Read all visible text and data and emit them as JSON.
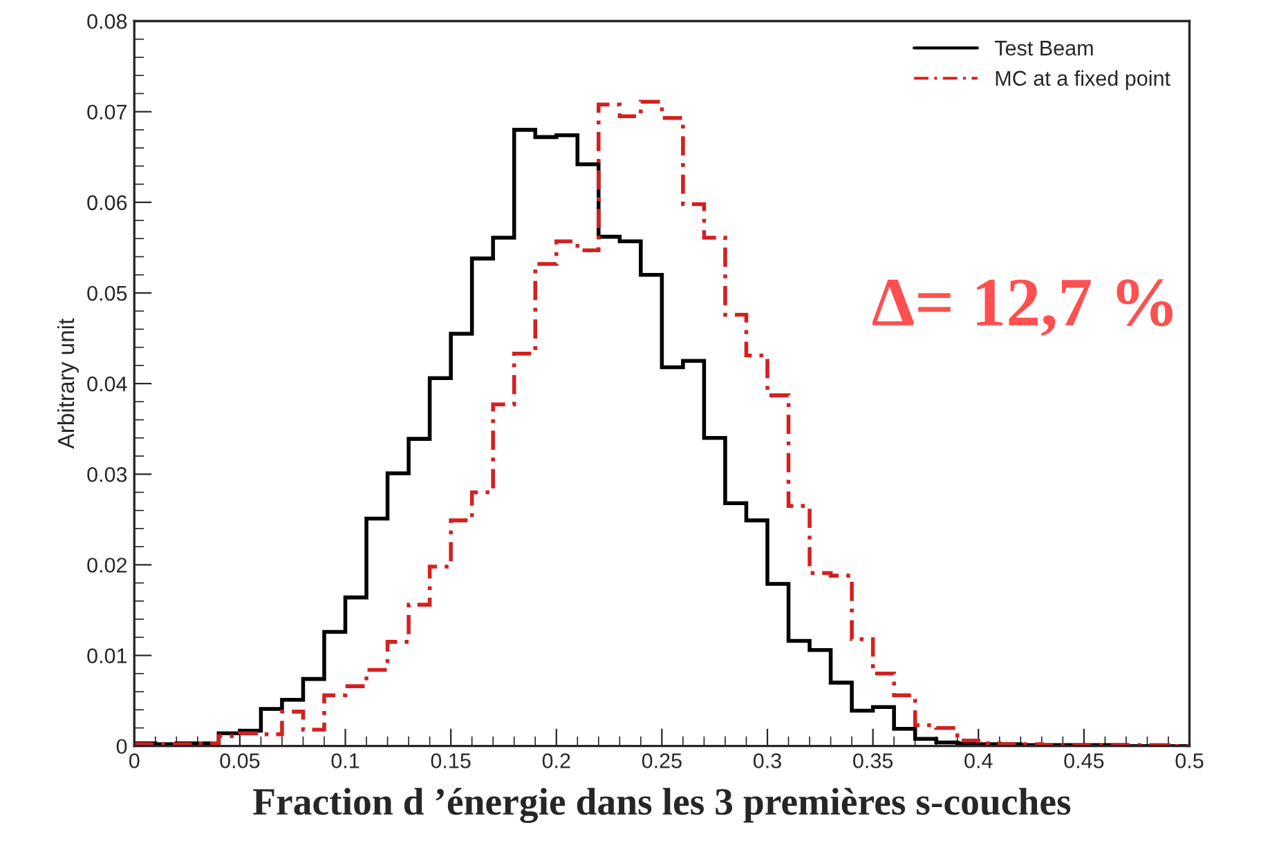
{
  "chart_data": {
    "type": "histogram",
    "xlabel": "Fraction d ’énergie dans les 3 premières s-couches",
    "ylabel": "Arbitrary unit",
    "annotations": [
      "Δ= 12,7 %"
    ],
    "bins": [
      0,
      0.01,
      0.02,
      0.03,
      0.04,
      0.05,
      0.06,
      0.07,
      0.08,
      0.09,
      0.1,
      0.11,
      0.12,
      0.13,
      0.14,
      0.15,
      0.16,
      0.17,
      0.18,
      0.19,
      0.2,
      0.21,
      0.22,
      0.23,
      0.24,
      0.25,
      0.26,
      0.27,
      0.28,
      0.29,
      0.3,
      0.31,
      0.32,
      0.33,
      0.34,
      0.35,
      0.36,
      0.37,
      0.38,
      0.39,
      0.4,
      0.41,
      0.42,
      0.43,
      0.44,
      0.45,
      0.46,
      0.47,
      0.48,
      0.49,
      0.5
    ],
    "series": [
      {
        "name": "Test Beam",
        "color": "#000000",
        "line_style": "solid",
        "values": [
          0.0003,
          0.0002,
          0.0003,
          0.0003,
          0.0014,
          0.0017,
          0.0041,
          0.0051,
          0.0074,
          0.0126,
          0.0164,
          0.0251,
          0.0301,
          0.0339,
          0.0406,
          0.0455,
          0.0538,
          0.0561,
          0.068,
          0.0672,
          0.0674,
          0.0642,
          0.0562,
          0.0557,
          0.052,
          0.0418,
          0.0425,
          0.034,
          0.0268,
          0.0249,
          0.0179,
          0.0116,
          0.0106,
          0.007,
          0.0039,
          0.0043,
          0.0019,
          0.0008,
          0.0004,
          0.0003,
          0.0002,
          0.0002,
          0.0001,
          0.0001,
          0.0001,
          0.0001,
          0.0001,
          0,
          0,
          0
        ]
      },
      {
        "name": "MC at a fixed point",
        "color": "#d42020",
        "line_style": "dashed",
        "values": [
          0.0002,
          0.0002,
          0.0002,
          0.0003,
          0.0011,
          0.0014,
          0.0013,
          0.0038,
          0.0018,
          0.0056,
          0.0066,
          0.0084,
          0.0115,
          0.0156,
          0.0198,
          0.0249,
          0.028,
          0.0377,
          0.0433,
          0.0532,
          0.0557,
          0.0547,
          0.0708,
          0.0695,
          0.0711,
          0.0693,
          0.0598,
          0.0561,
          0.0476,
          0.0431,
          0.0387,
          0.0265,
          0.0191,
          0.0188,
          0.0118,
          0.008,
          0.0056,
          0.0023,
          0.002,
          0.0006,
          0.0003,
          0.0002,
          0.0002,
          0.0001,
          0.0001,
          0.0001,
          0.0001,
          0.0001,
          0.0001,
          0
        ]
      }
    ],
    "xlim": [
      0,
      0.5
    ],
    "xticks": [
      0,
      0.05,
      0.1,
      0.15,
      0.2,
      0.25,
      0.3,
      0.35,
      0.4,
      0.45,
      0.5
    ],
    "ylim": [
      0,
      0.08
    ],
    "yticks": [
      0,
      0.01,
      0.02,
      0.03,
      0.04,
      0.05,
      0.06,
      0.07,
      0.08
    ],
    "legend": "top right",
    "grid": false
  }
}
